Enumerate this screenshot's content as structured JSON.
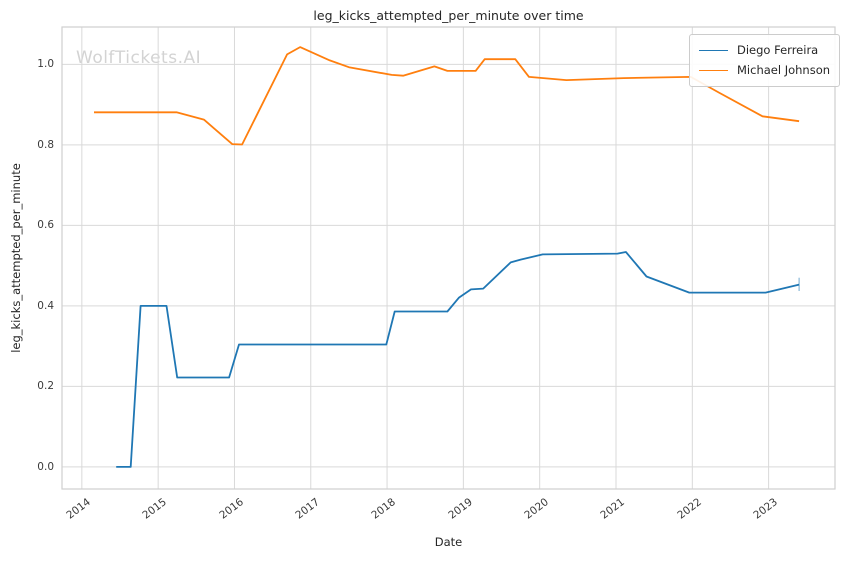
{
  "watermark": "WolfTickets.AI",
  "chart_data": {
    "type": "line",
    "title": "leg_kicks_attempted_per_minute over time",
    "xlabel": "Date",
    "ylabel": "leg_kicks_attempted_per_minute",
    "grid": true,
    "legend_position": "upper right",
    "x_range": [
      2013.74,
      2023.87
    ],
    "y_range": [
      -0.055,
      1.093
    ],
    "x_ticks": {
      "values": [
        2014,
        2015,
        2016,
        2017,
        2018,
        2019,
        2020,
        2021,
        2022,
        2023
      ],
      "labels": [
        "2014",
        "2015",
        "2016",
        "2017",
        "2018",
        "2019",
        "2020",
        "2021",
        "2022",
        "2023"
      ]
    },
    "y_ticks": {
      "values": [
        0.0,
        0.2,
        0.4,
        0.6,
        0.8,
        1.0
      ],
      "labels": [
        "0.0",
        "0.2",
        "0.4",
        "0.6",
        "0.8",
        "1.0"
      ]
    },
    "colors": {
      "grid": "#d9d9d9",
      "spine": "#cfcfcf"
    },
    "series": [
      {
        "name": "Diego Ferreira",
        "color": "#1f77b4",
        "points": [
          [
            2014.45,
            0.0
          ],
          [
            2014.64,
            0.0
          ],
          [
            2014.77,
            0.4
          ],
          [
            2015.11,
            0.4
          ],
          [
            2015.25,
            0.222
          ],
          [
            2015.93,
            0.222
          ],
          [
            2016.06,
            0.304
          ],
          [
            2017.99,
            0.304
          ],
          [
            2018.1,
            0.386
          ],
          [
            2018.79,
            0.386
          ],
          [
            2018.94,
            0.42
          ],
          [
            2019.1,
            0.441
          ],
          [
            2019.26,
            0.443
          ],
          [
            2019.62,
            0.508
          ],
          [
            2019.75,
            0.515
          ],
          [
            2020.04,
            0.528
          ],
          [
            2021.02,
            0.53
          ],
          [
            2021.13,
            0.534
          ],
          [
            2021.4,
            0.473
          ],
          [
            2021.96,
            0.433
          ],
          [
            2022.96,
            0.433
          ],
          [
            2023.4,
            0.453
          ]
        ],
        "end_cap": [
          0.437,
          0.47
        ]
      },
      {
        "name": "Michael Johnson",
        "color": "#ff7f0e",
        "points": [
          [
            2014.16,
            0.881
          ],
          [
            2015.24,
            0.881
          ],
          [
            2015.6,
            0.863
          ],
          [
            2015.97,
            0.802
          ],
          [
            2016.1,
            0.801
          ],
          [
            2016.69,
            1.025
          ],
          [
            2016.86,
            1.043
          ],
          [
            2017.25,
            1.01
          ],
          [
            2017.5,
            0.993
          ],
          [
            2018.06,
            0.974
          ],
          [
            2018.21,
            0.972
          ],
          [
            2018.62,
            0.995
          ],
          [
            2018.79,
            0.984
          ],
          [
            2019.16,
            0.984
          ],
          [
            2019.28,
            1.013
          ],
          [
            2019.68,
            1.013
          ],
          [
            2019.86,
            0.969
          ],
          [
            2020.35,
            0.961
          ],
          [
            2021.1,
            0.966
          ],
          [
            2021.98,
            0.969
          ],
          [
            2022.35,
            0.93
          ],
          [
            2022.92,
            0.871
          ],
          [
            2023.4,
            0.859
          ]
        ]
      }
    ]
  }
}
